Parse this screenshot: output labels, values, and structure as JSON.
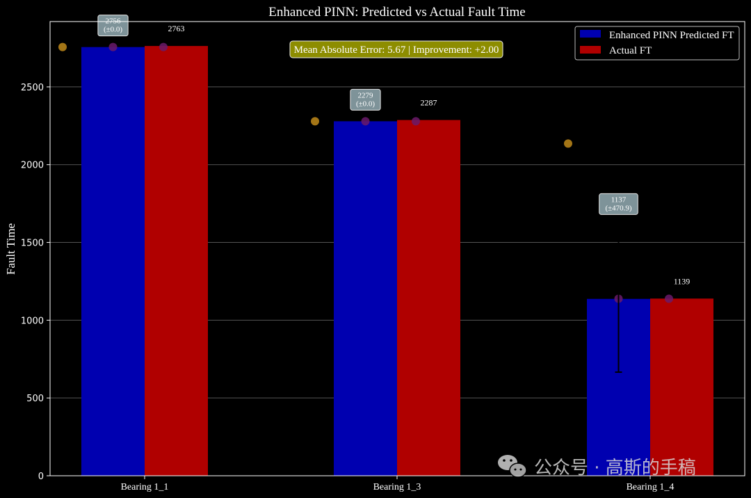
{
  "watermark": {
    "text": "公众号 · 高斯的手稿",
    "icon": "wechat-icon"
  },
  "chart_data": {
    "type": "bar",
    "title": "Enhanced PINN: Predicted vs Actual Fault Time",
    "xlabel": "",
    "ylabel": "Fault Time",
    "categories": [
      "Bearing 1_1",
      "Bearing 1_3",
      "Bearing 1_4"
    ],
    "ylim": [
      0,
      2920
    ],
    "yticks": [
      0,
      500,
      1000,
      1500,
      2000,
      2500
    ],
    "grid": "horizontal",
    "legend_position": "top-right",
    "series": [
      {
        "name": "Enhanced PINN Predicted FT",
        "color": "#0000b0",
        "values": [
          2756,
          2279,
          1137
        ],
        "errors": [
          0.0,
          0.0,
          470.9
        ],
        "value_labels": [
          "2756\n(±0.0)",
          "2279\n(±0.0)",
          "1137\n(±470.9)"
        ]
      },
      {
        "name": "Actual FT",
        "color": "#b00000",
        "values": [
          2763,
          2287,
          1139
        ],
        "value_labels": [
          "2763",
          "2287",
          "1139"
        ]
      }
    ],
    "scatter_points": [
      {
        "category": 0,
        "offset": -0.25,
        "y": 2756,
        "color": "#c08a1a"
      },
      {
        "category": 0,
        "offset": 0.0,
        "y": 2756,
        "color": "#6a1a6a"
      },
      {
        "category": 0,
        "offset": 0.25,
        "y": 2756,
        "color": "#6a1a6a"
      },
      {
        "category": 1,
        "offset": -0.25,
        "y": 2279,
        "color": "#c08a1a"
      },
      {
        "category": 1,
        "offset": 0.0,
        "y": 2279,
        "color": "#6a1a6a"
      },
      {
        "category": 1,
        "offset": 0.25,
        "y": 2279,
        "color": "#6a1a6a"
      },
      {
        "category": 2,
        "offset": -0.25,
        "y": 2136,
        "color": "#c08a1a"
      },
      {
        "category": 2,
        "offset": 0.0,
        "y": 1138,
        "color": "#6a1a6a"
      },
      {
        "category": 2,
        "offset": 0.25,
        "y": 1138,
        "color": "#6a1a6a"
      }
    ],
    "annotation": {
      "text": "Mean Absolute Error: 5.67 | Improvement: +2.00",
      "background": "#b5b500"
    }
  }
}
